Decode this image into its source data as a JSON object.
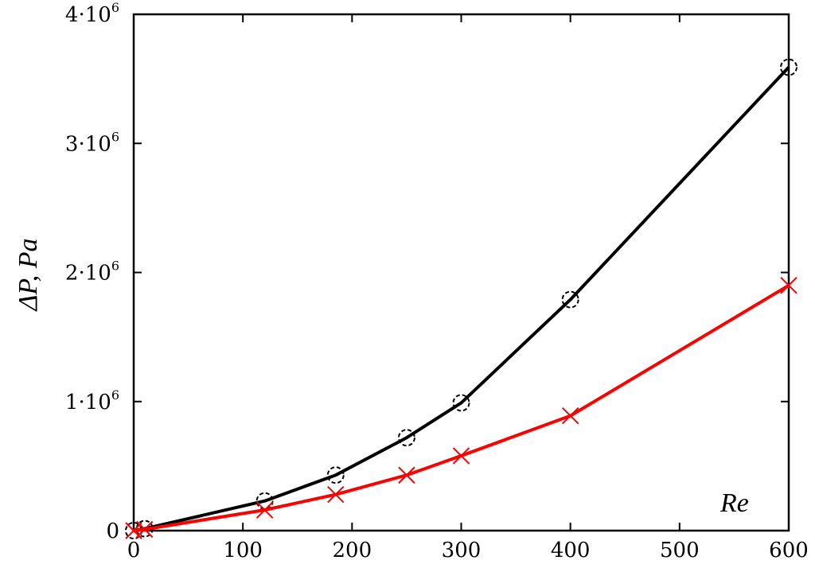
{
  "chart_data": {
    "type": "line",
    "xlabel": "Re",
    "ylabel": "ΔP, Pa",
    "xlim": [
      0,
      600
    ],
    "ylim": [
      0,
      4000000
    ],
    "x_ticks": [
      0,
      100,
      200,
      300,
      400,
      500,
      600
    ],
    "x_tick_labels": [
      "0",
      "100",
      "200",
      "300",
      "400",
      "500",
      "600"
    ],
    "y_ticks": [
      0,
      1000000,
      2000000,
      3000000,
      4000000
    ],
    "y_tick_labels": [
      {
        "base": "0",
        "exp": ""
      },
      {
        "base": "1·10",
        "exp": "6"
      },
      {
        "base": "2·10",
        "exp": "6"
      },
      {
        "base": "3·10",
        "exp": "6"
      },
      {
        "base": "4·10",
        "exp": "6"
      }
    ],
    "grid": false,
    "series": [
      {
        "color": "#000000",
        "marker": "circle",
        "points": [
          {
            "x": 0,
            "y": 0
          },
          {
            "x": 10,
            "y": 15000
          },
          {
            "x": 120,
            "y": 230000
          },
          {
            "x": 185,
            "y": 430000
          },
          {
            "x": 250,
            "y": 720000
          },
          {
            "x": 300,
            "y": 990000
          },
          {
            "x": 400,
            "y": 1790000
          },
          {
            "x": 600,
            "y": 3590000
          }
        ]
      },
      {
        "color": "#ff0000",
        "marker": "x",
        "points": [
          {
            "x": 0,
            "y": 0
          },
          {
            "x": 10,
            "y": 10000
          },
          {
            "x": 120,
            "y": 160000
          },
          {
            "x": 185,
            "y": 280000
          },
          {
            "x": 250,
            "y": 430000
          },
          {
            "x": 300,
            "y": 580000
          },
          {
            "x": 400,
            "y": 890000
          },
          {
            "x": 600,
            "y": 1900000
          }
        ]
      }
    ]
  }
}
